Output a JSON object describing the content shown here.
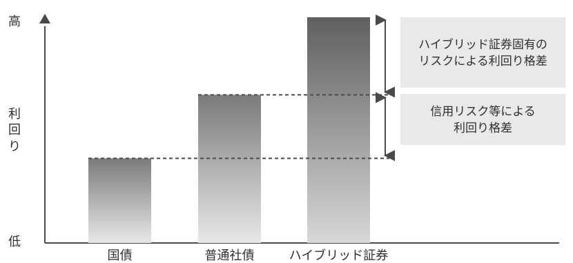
{
  "chart_data": {
    "type": "bar",
    "categories": [
      "国債",
      "普通社債",
      "ハイブリッド証券"
    ],
    "values": [
      1.2,
      2.1,
      3.2
    ],
    "ylim": [
      0,
      3.2
    ],
    "y_axis": {
      "high_label": "高",
      "low_label": "低",
      "title_lines": [
        "利",
        "回",
        "り"
      ]
    },
    "annotations": [
      {
        "lines": [
          "ハイブリッド証券固有の",
          "リスクによる利回り格差"
        ],
        "from_category": "普通社債",
        "to_category": "ハイブリッド証券"
      },
      {
        "lines": [
          "信用リスク等による",
          "利回り格差"
        ],
        "from_category": "国債",
        "to_category": "普通社債"
      }
    ],
    "grid": false
  },
  "colors": {
    "axis": "#4a4a4a",
    "bar_top": "#7b7b7b",
    "bar_bottom": "#e8e8e8",
    "bar_top_dark": "#5f5f5f",
    "bar_bottom_dark": "#d8d8d8",
    "dashed": "#4a4a4a",
    "note_bg": "#e9e9e9"
  }
}
